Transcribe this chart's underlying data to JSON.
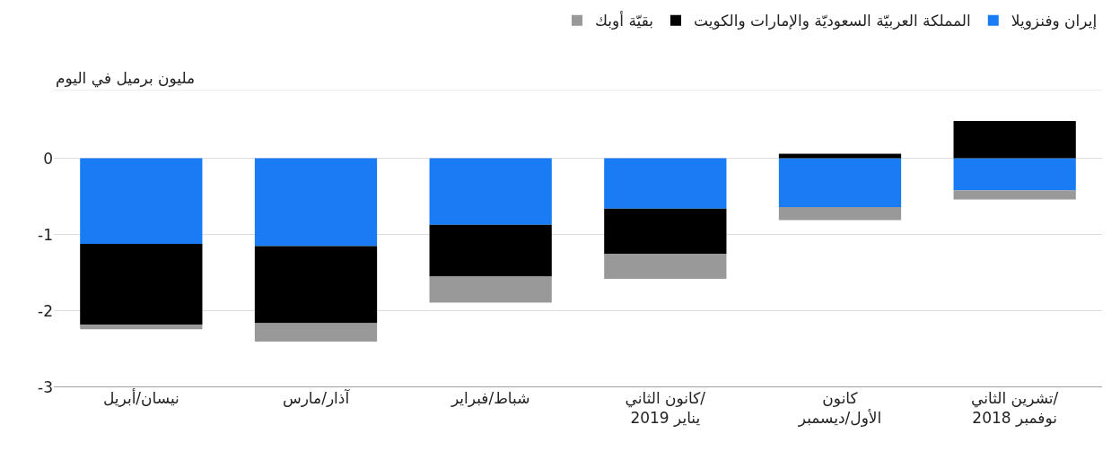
{
  "chart_data": {
    "type": "bar",
    "stacked": true,
    "ylabel": "مليون برميل في اليوم",
    "categories": [
      "نيسان/أبريل",
      "آذار/مارس",
      "شباط/فبراير",
      "كانون الثاني/\nيناير 2019",
      "كانون\nالأول/ديسمبر",
      "تشرين الثاني/\nنوفمبر 2018"
    ],
    "series": [
      {
        "name": "إيران وفنزويلا",
        "color": "#1a7cf5",
        "values": [
          -1.12,
          -1.15,
          -0.87,
          -0.66,
          -0.64,
          -0.42
        ]
      },
      {
        "name": "المملكة العربيّة السعوديّة والإمارات والكويت",
        "color": "#000000",
        "values": [
          -1.06,
          -1.01,
          -0.68,
          -0.59,
          0.06,
          0.49
        ]
      },
      {
        "name": "بقيّة أوبك",
        "color": "#999999",
        "values": [
          -0.06,
          -0.24,
          -0.34,
          -0.33,
          -0.17,
          -0.12
        ]
      }
    ],
    "ylim": [
      -3,
      0.9
    ],
    "yticks": [
      -3,
      -2,
      -1,
      0
    ],
    "grid": "y",
    "legend": "top"
  }
}
